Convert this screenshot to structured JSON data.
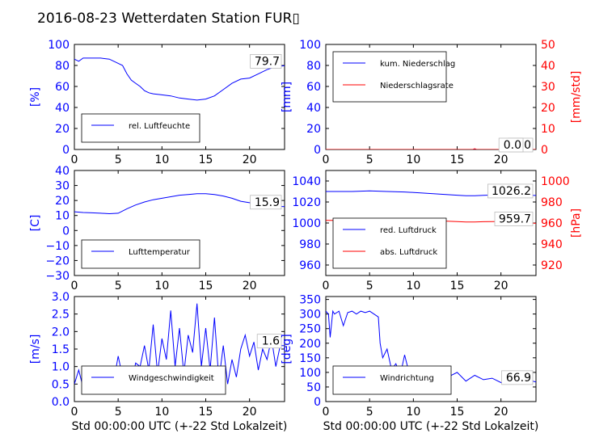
{
  "title": "2016-08-23 Wetterdaten Station FUR▯",
  "colors": {
    "blue": "#0000ff",
    "red": "#ff0000",
    "axis": "#000000"
  },
  "chart_data": [
    {
      "type": "line",
      "id": "humidity",
      "ylabel": "[%]",
      "xlim": [
        0,
        24
      ],
      "ylim": [
        0,
        100
      ],
      "xticks": [
        "0",
        "5",
        "10",
        "15",
        "20"
      ],
      "yticks": [
        "0",
        "20",
        "40",
        "60",
        "80",
        "100"
      ],
      "legend": {
        "position": "lower-left",
        "entries": [
          "rel. Luftfeuchte"
        ]
      },
      "last_value_label": "79.7",
      "series": [
        {
          "name": "rel. Luftfeuchte",
          "color": "#0000ff",
          "x": [
            0,
            0.5,
            1,
            2,
            3,
            4,
            5,
            5.5,
            6,
            6.5,
            7,
            7.5,
            8,
            8.5,
            9,
            10,
            11,
            12,
            13,
            14,
            15,
            16,
            17,
            18,
            19,
            20,
            21,
            22,
            23,
            24
          ],
          "y": [
            86,
            84,
            87,
            87,
            87,
            86,
            82,
            80,
            72,
            66,
            63,
            60,
            56,
            54,
            53,
            52,
            51,
            49,
            48,
            47,
            48,
            51,
            57,
            63,
            67,
            68,
            72,
            76,
            79,
            79.7
          ]
        }
      ]
    },
    {
      "type": "line",
      "id": "precipitation",
      "ylabel": "[mm]",
      "ylabel2": "[mm/std]",
      "xlim": [
        0,
        24
      ],
      "ylim": [
        0,
        100
      ],
      "ylim2": [
        0,
        50
      ],
      "xticks": [
        "0",
        "5",
        "10",
        "15",
        "20"
      ],
      "yticks": [
        "0",
        "20",
        "40",
        "60",
        "80",
        "100"
      ],
      "yticks2": [
        "0",
        "10",
        "20",
        "30",
        "40",
        "50"
      ],
      "legend": {
        "position": "upper-left",
        "entries": [
          "kum. Niederschlag",
          "Niederschlagsrate"
        ]
      },
      "last_value_label": "0.0",
      "last_value_label2": "0.0",
      "series": [
        {
          "name": "kum. Niederschlag",
          "color": "#0000ff",
          "axis": "left",
          "x": [
            0,
            24
          ],
          "y": [
            0,
            0
          ]
        },
        {
          "name": "Niederschlagsrate",
          "color": "#ff0000",
          "axis": "right",
          "x": [
            0,
            16.8,
            17,
            17.2,
            24
          ],
          "y": [
            0,
            0,
            0.4,
            0,
            0
          ]
        }
      ]
    },
    {
      "type": "line",
      "id": "temperature",
      "ylabel": "[C]",
      "xlim": [
        0,
        24
      ],
      "ylim": [
        -30,
        40
      ],
      "xticks": [
        "0",
        "5",
        "10",
        "15",
        "20"
      ],
      "yticks": [
        "−30",
        "−20",
        "−10",
        "0",
        "10",
        "20",
        "30",
        "40"
      ],
      "legend": {
        "position": "lower-left",
        "entries": [
          "Lufttemperatur"
        ]
      },
      "last_value_label": "15.9",
      "series": [
        {
          "name": "Lufttemperatur",
          "color": "#0000ff",
          "x": [
            0,
            1,
            2,
            3,
            4,
            5,
            6,
            7,
            8,
            9,
            10,
            11,
            12,
            13,
            14,
            15,
            16,
            17,
            18,
            19,
            20,
            21,
            22,
            23,
            24
          ],
          "y": [
            12.5,
            12,
            11.8,
            11.5,
            11.2,
            11.5,
            14.5,
            17,
            19,
            20.5,
            21.5,
            22.5,
            23.5,
            24,
            24.5,
            24.5,
            24,
            23,
            21.5,
            19.5,
            18.5,
            17.5,
            17,
            16.2,
            15.9
          ]
        }
      ]
    },
    {
      "type": "line",
      "id": "pressure",
      "ylabel2": "[hPa]",
      "xlim": [
        0,
        24
      ],
      "ylim": [
        950,
        1050
      ],
      "ylim2": [
        910,
        1010
      ],
      "xticks": [
        "0",
        "5",
        "10",
        "15",
        "20"
      ],
      "yticks": [
        "960",
        "980",
        "1000",
        "1020",
        "1040"
      ],
      "yticks2": [
        "920",
        "940",
        "960",
        "980",
        "1000"
      ],
      "legend": {
        "position": "lower-left",
        "entries": [
          "red. Luftdruck",
          "abs. Luftdruck"
        ]
      },
      "last_value_label": "1026.2",
      "last_value_label2": "959.7",
      "series": [
        {
          "name": "red. Luftdruck",
          "color": "#0000ff",
          "axis": "left",
          "x": [
            0,
            3,
            5,
            7,
            9,
            11,
            13,
            15,
            16,
            17,
            18,
            19,
            20,
            22,
            24
          ],
          "y": [
            1030,
            1030,
            1030.5,
            1030,
            1029.5,
            1028.5,
            1027.5,
            1026.5,
            1026,
            1026,
            1026.3,
            1026.6,
            1026.8,
            1026.5,
            1026.2
          ]
        },
        {
          "name": "abs. Luftdruck",
          "color": "#ff0000",
          "axis": "right",
          "x": [
            0,
            3,
            5,
            7,
            9,
            11,
            13,
            15,
            16,
            17,
            18,
            20,
            22,
            24
          ],
          "y": [
            962.5,
            962.5,
            963,
            963.5,
            963.3,
            962.8,
            962,
            961.3,
            961,
            961,
            961.2,
            961.5,
            960.5,
            959.7
          ]
        }
      ]
    },
    {
      "type": "line",
      "id": "windspeed",
      "ylabel": "[m/s]",
      "xlabel": "Std 00:00:00 UTC (+-22 Std Lokalzeit)",
      "xlim": [
        0,
        24
      ],
      "ylim": [
        0,
        3
      ],
      "xticks": [
        "0",
        "5",
        "10",
        "15",
        "20"
      ],
      "yticks": [
        "0.0",
        "0.5",
        "1.0",
        "1.5",
        "2.0",
        "2.5",
        "3.0"
      ],
      "legend": {
        "position": "lower-left",
        "entries": [
          "Windgeschwindigkeit"
        ]
      },
      "last_value_label": "1.6",
      "series": [
        {
          "name": "Windgeschwindigkeit",
          "color": "#0000ff",
          "x": [
            0,
            0.5,
            1,
            1.5,
            2,
            2.5,
            3,
            3.5,
            4,
            4.5,
            5,
            5.5,
            6,
            6.5,
            7,
            7.5,
            8,
            8.5,
            9,
            9.5,
            10,
            10.5,
            11,
            11.5,
            12,
            12.5,
            13,
            13.5,
            14,
            14.5,
            15,
            15.5,
            16,
            16.5,
            17,
            17.5,
            18,
            18.5,
            19,
            19.5,
            20,
            20.5,
            21,
            21.5,
            22,
            22.5,
            23,
            23.5,
            24
          ],
          "y": [
            0.5,
            0.9,
            0.4,
            1.0,
            0.3,
            0.6,
            0.9,
            0.5,
            0.8,
            0.6,
            1.3,
            0.7,
            0.9,
            0.5,
            1.1,
            1.0,
            1.6,
            0.9,
            2.2,
            0.8,
            1.8,
            1.2,
            2.6,
            1.0,
            2.1,
            0.8,
            1.9,
            1.4,
            2.8,
            1.0,
            2.1,
            0.9,
            2.4,
            0.6,
            1.6,
            0.5,
            1.2,
            0.7,
            1.5,
            1.9,
            1.3,
            1.7,
            0.9,
            1.5,
            1.2,
            1.8,
            1.0,
            1.6,
            1.6
          ]
        }
      ]
    },
    {
      "type": "line",
      "id": "winddirection",
      "ylabel": "[deg]",
      "xlabel": "Std 00:00:00 UTC (+-22 Std Lokalzeit)",
      "xlim": [
        0,
        24
      ],
      "ylim": [
        0,
        360
      ],
      "xticks": [
        "0",
        "5",
        "10",
        "15",
        "20"
      ],
      "yticks": [
        "0",
        "50",
        "100",
        "150",
        "200",
        "250",
        "300",
        "350"
      ],
      "legend": {
        "position": "lower-left",
        "entries": [
          "Windrichtung"
        ]
      },
      "last_value_label": "66.9",
      "series": [
        {
          "name": "Windrichtung",
          "color": "#0000ff",
          "x": [
            0,
            0.3,
            0.5,
            0.8,
            1,
            1.5,
            2,
            2.5,
            3,
            3.5,
            4,
            4.5,
            5,
            5.5,
            6,
            6.2,
            6.5,
            7,
            7.5,
            8,
            8.5,
            9,
            9.5,
            10,
            11,
            12,
            13,
            14,
            15,
            16,
            17,
            18,
            19,
            20,
            21,
            22,
            23,
            24
          ],
          "y": [
            310,
            300,
            220,
            310,
            300,
            310,
            260,
            305,
            310,
            300,
            310,
            305,
            310,
            300,
            290,
            200,
            150,
            180,
            110,
            130,
            90,
            160,
            100,
            80,
            120,
            90,
            110,
            85,
            100,
            70,
            90,
            75,
            80,
            65,
            60,
            70,
            75,
            66.9
          ]
        }
      ]
    }
  ]
}
